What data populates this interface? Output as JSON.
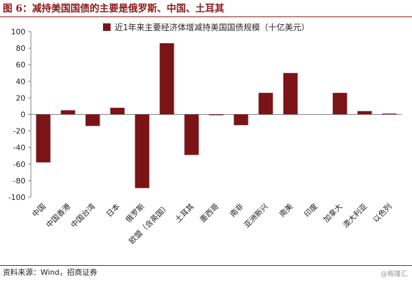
{
  "figure": {
    "title": "图 6：减持美国国债的主要是俄罗斯、中国、土耳其",
    "source": "资料来源：Wind，招商证券",
    "watermark": "@格隆汇"
  },
  "colors": {
    "bar": "#7b1416",
    "title": "#8b1a1a",
    "axis": "#808080"
  },
  "chart_data": {
    "type": "bar",
    "categories": [
      "中国",
      "中国香港",
      "中国台湾",
      "日本",
      "俄罗斯",
      "欧盟（含英国）",
      "土耳其",
      "墨西哥",
      "南非",
      "亚洲新兴",
      "南美",
      "印度",
      "加拿大",
      "澳大利亚",
      "以色列"
    ],
    "series": [
      {
        "name": "近1年来主要经济体增减持美国国债规模（十亿美元）",
        "values": [
          -58,
          5,
          -14,
          8,
          -89,
          86,
          -49,
          -1,
          -13,
          26,
          50,
          0,
          26,
          4,
          1
        ]
      }
    ],
    "ylim": [
      -100,
      100
    ],
    "yticks": [
      -100,
      -80,
      -60,
      -40,
      -20,
      0,
      20,
      40,
      60,
      80,
      100
    ],
    "xlabel": "",
    "ylabel": "",
    "grid": false,
    "legend_position": "top-right"
  }
}
